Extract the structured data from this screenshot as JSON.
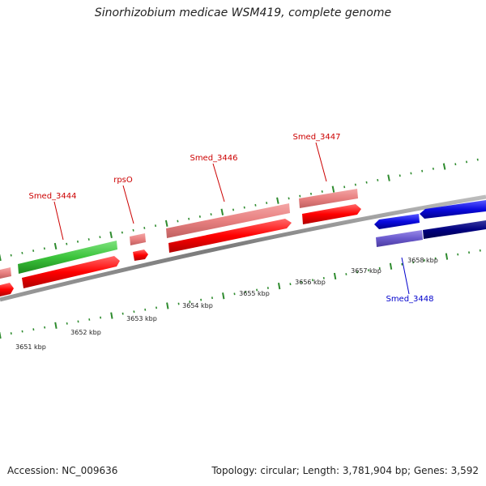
{
  "title": "Sinorhizobium medicae WSM419, complete genome",
  "footer": {
    "accession": "Accession: NC_009636",
    "summary": "Topology: circular; Length: 3,781,904 bp; Genes: 3,592"
  },
  "colors": {
    "backbone": "#8a8a8a",
    "forward_tick": "#2e8b2e",
    "forward_cds": "#e86b6b",
    "reverse_cds": "#d60000",
    "green_feature": "#39c439",
    "blue_feature": "#1010d8",
    "navy_feature": "#000080",
    "purple_feature": "#6a5acd",
    "label_red": "#cc0000",
    "label_blue": "#0000cc",
    "kbp_text": "#222222"
  },
  "kbp_labels": [
    {
      "text": "3651 kbp",
      "pos": 3651
    },
    {
      "text": "3652 kbp",
      "pos": 3652
    },
    {
      "text": "3653 kbp",
      "pos": 3653
    },
    {
      "text": "3654 kbp",
      "pos": 3654
    },
    {
      "text": "3655 kbp",
      "pos": 3655
    },
    {
      "text": "3656 kbp",
      "pos": 3656
    },
    {
      "text": "3657 kbp",
      "pos": 3657
    },
    {
      "text": "3658 kbp",
      "pos": 3658
    }
  ],
  "gene_labels": [
    {
      "text": "Smed_3444",
      "color": "red"
    },
    {
      "text": "rpsO",
      "color": "red"
    },
    {
      "text": "Smed_3446",
      "color": "red"
    },
    {
      "text": "Smed_3447",
      "color": "red"
    },
    {
      "text": "Smed_3448",
      "color": "blue"
    }
  ]
}
